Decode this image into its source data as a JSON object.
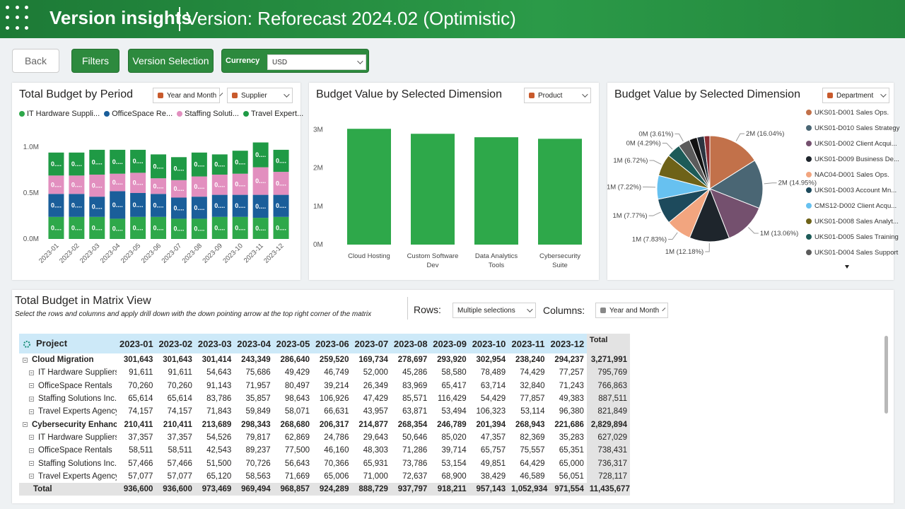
{
  "header": {
    "title": "Version insights",
    "version": "Version: Reforecast 2024.02 (Optimistic)"
  },
  "toolbar": {
    "back": "Back",
    "filters": "Filters",
    "version_selection": "Version Selection",
    "currency_label": "Currency",
    "currency": "USD"
  },
  "chart_data": [
    {
      "type": "stacked_bar",
      "title": "Total Budget by Period",
      "filters": [
        "Year and Month",
        "Supplier"
      ],
      "categories": [
        "2023-01",
        "2023-02",
        "2023-03",
        "2023-04",
        "2023-05",
        "2023-06",
        "2023-07",
        "2023-08",
        "2023-09",
        "2023-10",
        "2023-11",
        "2023-12"
      ],
      "series": [
        {
          "name": "IT Hardware Suppli...",
          "color": "#2ea84a",
          "values": [
            0.24,
            0.24,
            0.24,
            0.22,
            0.24,
            0.24,
            0.22,
            0.22,
            0.24,
            0.24,
            0.23,
            0.24
          ],
          "value_labels": [
            "0....",
            "0....",
            "0....",
            "0....",
            "0....",
            "0....",
            "0....",
            "0....",
            "0....",
            "0....",
            "0....",
            "0...."
          ]
        },
        {
          "name": "OfficeSpace Re...",
          "color": "#1a5e9a",
          "values": [
            0.25,
            0.25,
            0.22,
            0.3,
            0.26,
            0.25,
            0.23,
            0.24,
            0.24,
            0.24,
            0.25,
            0.24
          ],
          "value_labels": [
            "0....",
            "0....",
            "0....",
            "0....",
            "0....",
            "0....",
            "0....",
            "0....",
            "0....",
            "0....",
            "0....",
            "0...."
          ]
        },
        {
          "name": "Staffing Soluti...",
          "color": "#e28fbf",
          "values": [
            0.2,
            0.2,
            0.24,
            0.19,
            0.22,
            0.17,
            0.19,
            0.22,
            0.22,
            0.23,
            0.3,
            0.25
          ],
          "value_labels": [
            "0....",
            "0....",
            "0....",
            "0....",
            "0....",
            "0....",
            "0....",
            "0....",
            "0....",
            "0....",
            "0....",
            "0...."
          ]
        },
        {
          "name": "Travel Expert...",
          "color": "#1f9a45",
          "values": [
            0.25,
            0.25,
            0.27,
            0.26,
            0.25,
            0.26,
            0.25,
            0.26,
            0.22,
            0.25,
            0.27,
            0.24
          ],
          "value_labels": [
            "0....",
            "0....",
            "0....",
            "0....",
            "0....",
            "0....",
            "0....",
            "0....",
            "0....",
            "0....",
            "0....",
            "0...."
          ]
        }
      ],
      "ylim": [
        0,
        1.1
      ],
      "yticks": [
        {
          "value": 0,
          "label": "0.0M"
        },
        {
          "value": 0.5,
          "label": "0.5M"
        },
        {
          "value": 1,
          "label": "1.0M"
        }
      ]
    },
    {
      "type": "bar",
      "title": "Budget Value by Selected Dimension",
      "filters": [
        "Product"
      ],
      "categories": [
        "Cloud Hosting",
        "Custom Software Dev",
        "Data Analytics Tools",
        "Cybersecurity Suite"
      ],
      "values": [
        3.02,
        2.89,
        2.8,
        2.76
      ],
      "color": "#2ea84a",
      "ylim": [
        0,
        3.3
      ],
      "yticks": [
        {
          "value": 0,
          "label": "0M"
        },
        {
          "value": 1,
          "label": "1M"
        },
        {
          "value": 2,
          "label": "2M"
        },
        {
          "value": 3,
          "label": "3M"
        }
      ]
    },
    {
      "type": "pie",
      "title": "Budget Value by Selected Dimension",
      "filters": [
        "Department"
      ],
      "categories": [
        "UKS01-D001 Sales Ops.",
        "UKS01-D010 Sales Strategy",
        "UKS01-D002 Client Acqui...",
        "UKS01-D009 Business De...",
        "NAC04-D001 Sales Ops.",
        "UKS01-D003 Account Mn...",
        "CMS12-D002 Client Acqu...",
        "UKS01-D008 Sales Analyt...",
        "UKS01-D005 Sales Training",
        "UKS01-D004 Sales Support",
        null,
        null,
        null
      ],
      "values": [
        16.04,
        14.95,
        13.06,
        12.18,
        7.83,
        7.77,
        7.22,
        6.72,
        4.29,
        3.61,
        2.4,
        2.2,
        1.73
      ],
      "value_labels": [
        "2M (16.04%)",
        "2M (14.95%)",
        "1M (13.06%)",
        "1M (12.18%)",
        "1M (7.83%)",
        "1M (7.77%)",
        "1M (7.22%)",
        "1M (6.72%)",
        "0M (4.29%)",
        "0M (3.61%)",
        null,
        null,
        null
      ],
      "colors": [
        "#c2714a",
        "#4a6674",
        "#74506e",
        "#1e252c",
        "#f2a57f",
        "#1d4a5c",
        "#67c1f0",
        "#6e6218",
        "#1d5b58",
        "#5b5b5b",
        "#121212",
        "#2b3440",
        "#8a2d33"
      ]
    }
  ],
  "matrix": {
    "title": "Total Budget in Matrix View",
    "subtitle": "Select the rows and columns and apply drill down with the down pointing arrow at the top right corner of the matrix",
    "rows_label": "Rows:",
    "rows_value": "Multiple selections",
    "columns_label": "Columns:",
    "columns_value": "Year and Month",
    "header": [
      "Project",
      "2023-01",
      "2023-02",
      "2023-03",
      "2023-04",
      "2023-05",
      "2023-06",
      "2023-07",
      "2023-08",
      "2023-09",
      "2023-10",
      "2023-11",
      "2023-12",
      "Total"
    ],
    "groups": [
      {
        "label": "Cloud Migration",
        "cells": [
          "301,643",
          "301,643",
          "301,414",
          "243,349",
          "286,640",
          "259,520",
          "169,734",
          "278,697",
          "293,920",
          "302,954",
          "238,240",
          "294,237",
          "3,271,991"
        ],
        "children": [
          {
            "label": "IT Hardware Suppliers",
            "cells": [
              "91,611",
              "91,611",
              "54,643",
              "75,686",
              "49,429",
              "46,749",
              "52,000",
              "45,286",
              "58,580",
              "78,489",
              "74,429",
              "77,257",
              "795,769"
            ]
          },
          {
            "label": "OfficeSpace Rentals",
            "cells": [
              "70,260",
              "70,260",
              "91,143",
              "71,957",
              "80,497",
              "39,214",
              "26,349",
              "83,969",
              "65,417",
              "63,714",
              "32,840",
              "71,243",
              "766,863"
            ]
          },
          {
            "label": "Staffing Solutions Inc.",
            "cells": [
              "65,614",
              "65,614",
              "83,786",
              "35,857",
              "98,643",
              "106,926",
              "47,429",
              "85,571",
              "116,429",
              "54,429",
              "77,857",
              "49,383",
              "887,511"
            ]
          },
          {
            "label": "Travel Experts Agency",
            "cells": [
              "74,157",
              "74,157",
              "71,843",
              "59,849",
              "58,071",
              "66,631",
              "43,957",
              "63,871",
              "53,494",
              "106,323",
              "53,114",
              "96,380",
              "821,849"
            ]
          }
        ]
      },
      {
        "label": "Cybersecurity Enhanc.",
        "cells": [
          "210,411",
          "210,411",
          "213,689",
          "298,343",
          "268,680",
          "206,317",
          "214,877",
          "268,354",
          "246,789",
          "201,394",
          "268,943",
          "221,686",
          "2,829,894"
        ],
        "children": [
          {
            "label": "IT Hardware Suppliers",
            "cells": [
              "37,357",
              "37,357",
              "54,526",
              "79,817",
              "62,869",
              "24,786",
              "29,643",
              "50,646",
              "85,020",
              "47,357",
              "82,369",
              "35,283",
              "627,029"
            ]
          },
          {
            "label": "OfficeSpace Rentals",
            "cells": [
              "58,511",
              "58,511",
              "42,543",
              "89,237",
              "77,500",
              "46,160",
              "48,303",
              "71,286",
              "39,714",
              "65,757",
              "75,557",
              "65,351",
              "738,431"
            ]
          },
          {
            "label": "Staffing Solutions Inc.",
            "cells": [
              "57,466",
              "57,466",
              "51,500",
              "70,726",
              "56,643",
              "70,366",
              "65,931",
              "73,786",
              "53,154",
              "49,851",
              "64,429",
              "65,000",
              "736,317"
            ]
          },
          {
            "label": "Travel Experts Agency",
            "cells": [
              "57,077",
              "57,077",
              "65,120",
              "58,563",
              "71,669",
              "65,006",
              "71,000",
              "72,637",
              "68,900",
              "38,429",
              "46,589",
              "56,051",
              "728,117"
            ]
          }
        ]
      }
    ],
    "total": {
      "label": "Total",
      "cells": [
        "936,600",
        "936,600",
        "973,469",
        "969,494",
        "968,857",
        "924,289",
        "888,729",
        "937,797",
        "918,211",
        "957,143",
        "1,052,934",
        "971,554",
        "11,435,677"
      ]
    }
  }
}
